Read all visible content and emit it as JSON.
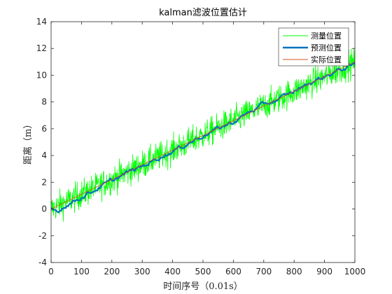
{
  "chart_data": {
    "type": "line",
    "title": "kalman滤波位置估计",
    "xlabel": "时间序号（0.01s）",
    "ylabel": "距离（m）",
    "xlim": [
      0,
      1000
    ],
    "ylim": [
      -4,
      14
    ],
    "xticks": [
      "0",
      "100",
      "200",
      "300",
      "400",
      "500",
      "600",
      "700",
      "800",
      "900",
      "1000"
    ],
    "yticks": [
      "-4",
      "-2",
      "0",
      "2",
      "4",
      "6",
      "8",
      "10",
      "12",
      "14"
    ],
    "grid": false,
    "legend_position": "top-right",
    "series": [
      {
        "name": "测量位置",
        "color": "#00ff00",
        "style": "noisy",
        "x": [
          0,
          50,
          100,
          150,
          200,
          250,
          300,
          350,
          400,
          450,
          500,
          550,
          600,
          650,
          700,
          750,
          800,
          850,
          900,
          950,
          1000
        ],
        "values": [
          0.0,
          0.55,
          1.1,
          1.65,
          2.2,
          2.75,
          3.3,
          3.85,
          4.4,
          4.95,
          5.5,
          6.05,
          6.6,
          7.15,
          7.7,
          8.25,
          8.8,
          9.35,
          9.9,
          10.45,
          11.0
        ],
        "noise_range": [
          -2.1,
          2.1
        ]
      },
      {
        "name": "预测位置",
        "color": "#0072bd",
        "style": "thick",
        "x": [
          0,
          20,
          50,
          100,
          150,
          200,
          250,
          300,
          350,
          400,
          450,
          500,
          550,
          600,
          650,
          700,
          750,
          800,
          850,
          900,
          950,
          1000
        ],
        "values": [
          0.0,
          -0.2,
          0.3,
          0.9,
          1.5,
          2.1,
          2.7,
          3.2,
          3.8,
          4.3,
          4.9,
          5.5,
          6.0,
          6.5,
          7.2,
          7.8,
          8.2,
          8.8,
          9.4,
          9.9,
          10.4,
          10.8
        ]
      },
      {
        "name": "实际位置",
        "color": "#d95319",
        "style": "thin",
        "x": [
          0,
          1000
        ],
        "values": [
          0.0,
          11.0
        ]
      }
    ]
  }
}
